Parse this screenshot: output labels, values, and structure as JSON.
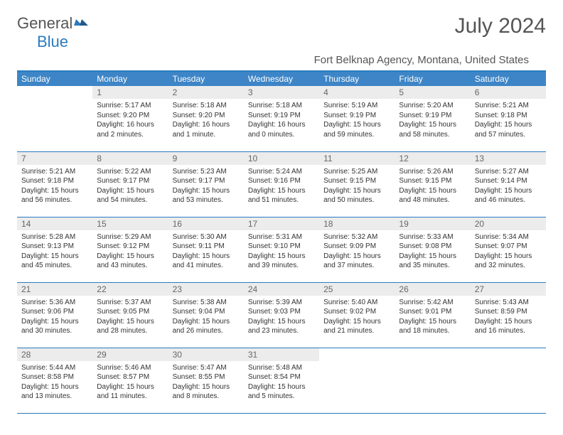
{
  "brand": {
    "part1": "General",
    "part2": "Blue"
  },
  "title": "July 2024",
  "location": "Fort Belknap Agency, Montana, United States",
  "colors": {
    "header_bg": "#3d85c6",
    "rule": "#2b7bbf",
    "daynum_bg": "#ececec",
    "text": "#555555"
  },
  "weekdays": [
    "Sunday",
    "Monday",
    "Tuesday",
    "Wednesday",
    "Thursday",
    "Friday",
    "Saturday"
  ],
  "weeks": [
    [
      null,
      {
        "n": "1",
        "sr": "5:17 AM",
        "ss": "9:20 PM",
        "dl": "16 hours and 2 minutes."
      },
      {
        "n": "2",
        "sr": "5:18 AM",
        "ss": "9:20 PM",
        "dl": "16 hours and 1 minute."
      },
      {
        "n": "3",
        "sr": "5:18 AM",
        "ss": "9:19 PM",
        "dl": "16 hours and 0 minutes."
      },
      {
        "n": "4",
        "sr": "5:19 AM",
        "ss": "9:19 PM",
        "dl": "15 hours and 59 minutes."
      },
      {
        "n": "5",
        "sr": "5:20 AM",
        "ss": "9:19 PM",
        "dl": "15 hours and 58 minutes."
      },
      {
        "n": "6",
        "sr": "5:21 AM",
        "ss": "9:18 PM",
        "dl": "15 hours and 57 minutes."
      }
    ],
    [
      {
        "n": "7",
        "sr": "5:21 AM",
        "ss": "9:18 PM",
        "dl": "15 hours and 56 minutes."
      },
      {
        "n": "8",
        "sr": "5:22 AM",
        "ss": "9:17 PM",
        "dl": "15 hours and 54 minutes."
      },
      {
        "n": "9",
        "sr": "5:23 AM",
        "ss": "9:17 PM",
        "dl": "15 hours and 53 minutes."
      },
      {
        "n": "10",
        "sr": "5:24 AM",
        "ss": "9:16 PM",
        "dl": "15 hours and 51 minutes."
      },
      {
        "n": "11",
        "sr": "5:25 AM",
        "ss": "9:15 PM",
        "dl": "15 hours and 50 minutes."
      },
      {
        "n": "12",
        "sr": "5:26 AM",
        "ss": "9:15 PM",
        "dl": "15 hours and 48 minutes."
      },
      {
        "n": "13",
        "sr": "5:27 AM",
        "ss": "9:14 PM",
        "dl": "15 hours and 46 minutes."
      }
    ],
    [
      {
        "n": "14",
        "sr": "5:28 AM",
        "ss": "9:13 PM",
        "dl": "15 hours and 45 minutes."
      },
      {
        "n": "15",
        "sr": "5:29 AM",
        "ss": "9:12 PM",
        "dl": "15 hours and 43 minutes."
      },
      {
        "n": "16",
        "sr": "5:30 AM",
        "ss": "9:11 PM",
        "dl": "15 hours and 41 minutes."
      },
      {
        "n": "17",
        "sr": "5:31 AM",
        "ss": "9:10 PM",
        "dl": "15 hours and 39 minutes."
      },
      {
        "n": "18",
        "sr": "5:32 AM",
        "ss": "9:09 PM",
        "dl": "15 hours and 37 minutes."
      },
      {
        "n": "19",
        "sr": "5:33 AM",
        "ss": "9:08 PM",
        "dl": "15 hours and 35 minutes."
      },
      {
        "n": "20",
        "sr": "5:34 AM",
        "ss": "9:07 PM",
        "dl": "15 hours and 32 minutes."
      }
    ],
    [
      {
        "n": "21",
        "sr": "5:36 AM",
        "ss": "9:06 PM",
        "dl": "15 hours and 30 minutes."
      },
      {
        "n": "22",
        "sr": "5:37 AM",
        "ss": "9:05 PM",
        "dl": "15 hours and 28 minutes."
      },
      {
        "n": "23",
        "sr": "5:38 AM",
        "ss": "9:04 PM",
        "dl": "15 hours and 26 minutes."
      },
      {
        "n": "24",
        "sr": "5:39 AM",
        "ss": "9:03 PM",
        "dl": "15 hours and 23 minutes."
      },
      {
        "n": "25",
        "sr": "5:40 AM",
        "ss": "9:02 PM",
        "dl": "15 hours and 21 minutes."
      },
      {
        "n": "26",
        "sr": "5:42 AM",
        "ss": "9:01 PM",
        "dl": "15 hours and 18 minutes."
      },
      {
        "n": "27",
        "sr": "5:43 AM",
        "ss": "8:59 PM",
        "dl": "15 hours and 16 minutes."
      }
    ],
    [
      {
        "n": "28",
        "sr": "5:44 AM",
        "ss": "8:58 PM",
        "dl": "15 hours and 13 minutes."
      },
      {
        "n": "29",
        "sr": "5:46 AM",
        "ss": "8:57 PM",
        "dl": "15 hours and 11 minutes."
      },
      {
        "n": "30",
        "sr": "5:47 AM",
        "ss": "8:55 PM",
        "dl": "15 hours and 8 minutes."
      },
      {
        "n": "31",
        "sr": "5:48 AM",
        "ss": "8:54 PM",
        "dl": "15 hours and 5 minutes."
      },
      null,
      null,
      null
    ]
  ],
  "labels": {
    "sunrise": "Sunrise: ",
    "sunset": "Sunset: ",
    "daylight": "Daylight: "
  }
}
